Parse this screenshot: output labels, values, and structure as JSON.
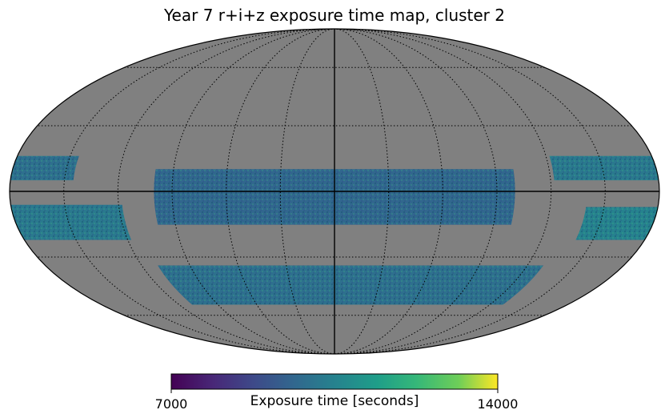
{
  "chart_data": {
    "type": "heatmap",
    "projection": "mollweide",
    "title": "Year 7 r+i+z exposure time map, cluster 2",
    "colormap": "viridis",
    "colorbar": {
      "label": "Exposure time [seconds]",
      "min": 7000,
      "max": 14000,
      "tick_labels": [
        "7000",
        "14000"
      ],
      "placement": "bottom"
    },
    "grid": true,
    "background_color": "#808080",
    "regions": [
      {
        "name": "equatorial-stripe",
        "lon_range": [
          -100,
          100
        ],
        "lat_range": [
          -15,
          10
        ],
        "typical_value": 9600
      },
      {
        "name": "southern-stripe",
        "lon_range": [
          -130,
          110
        ],
        "lat_range": [
          -54,
          -34
        ],
        "typical_value": 9900
      },
      {
        "name": "west-upper-band",
        "lon_range": [
          145,
          180
        ],
        "lat_range": [
          5,
          16
        ],
        "typical_value": 9900
      },
      {
        "name": "west-lower-band",
        "lon_range": [
          118,
          180
        ],
        "lat_range": [
          -22,
          -6
        ],
        "typical_value": 10200
      },
      {
        "name": "east-upper-band",
        "lon_range": [
          -180,
          -122
        ],
        "lat_range": [
          5,
          16
        ],
        "typical_value": 10200
      },
      {
        "name": "east-lower-band",
        "lon_range": [
          -180,
          -140
        ],
        "lat_range": [
          -22,
          -7
        ],
        "typical_value": 10500
      }
    ]
  }
}
